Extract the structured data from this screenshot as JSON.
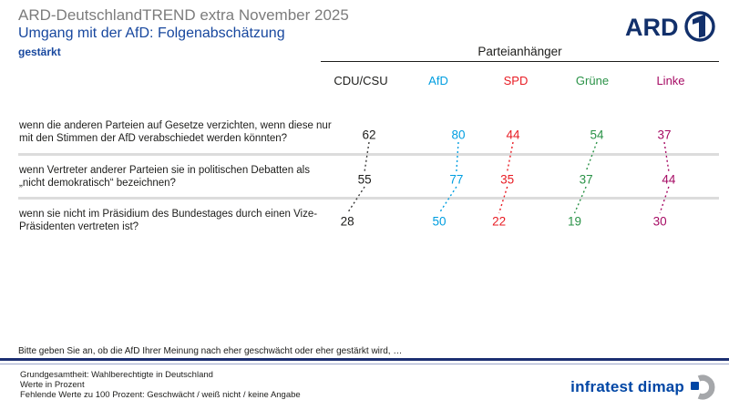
{
  "header": {
    "title": "ARD-DeutschlandTREND extra November 2025",
    "subtitle": "Umgang mit der AfD: Folgenabschätzung",
    "answer_label": "gestärkt",
    "brand": "ARD"
  },
  "chart_data": {
    "type": "table",
    "group_label": "Parteianhänger",
    "columns": [
      {
        "label": "CDU/CSU",
        "color": "#1d1d1b"
      },
      {
        "label": "AfD",
        "color": "#009ee0"
      },
      {
        "label": "SPD",
        "color": "#e81c24"
      },
      {
        "label": "Grüne",
        "color": "#2a9247"
      },
      {
        "label": "Linke",
        "color": "#a60b64"
      }
    ],
    "rows": [
      {
        "question": "wenn die anderen Parteien auf Gesetze verzichten, wenn diese nur mit den Stimmen der AfD verabschiedet werden könnten?",
        "values": [
          62,
          80,
          44,
          54,
          37
        ]
      },
      {
        "question": "wenn Vertreter anderer Parteien sie in politischen Debatten als „nicht demokratisch“ bezeichnen?",
        "values": [
          55,
          77,
          35,
          37,
          44
        ]
      },
      {
        "question": "wenn sie nicht im Präsidium des Bundestages durch einen Vize-Präsidenten vertreten ist?",
        "values": [
          28,
          50,
          22,
          19,
          30
        ]
      }
    ]
  },
  "question_note": "Bitte geben Sie an, ob die AfD Ihrer Meinung nach eher geschwächt oder eher gestärkt wird, …",
  "footer": {
    "lines": [
      "Grundgesamtheit: Wahlberechtigte in Deutschland",
      "Werte in Prozent",
      "Fehlende Werte zu 100 Prozent: Geschwächt / weiß nicht / keine Angabe"
    ],
    "brand": "infratest dimap"
  }
}
